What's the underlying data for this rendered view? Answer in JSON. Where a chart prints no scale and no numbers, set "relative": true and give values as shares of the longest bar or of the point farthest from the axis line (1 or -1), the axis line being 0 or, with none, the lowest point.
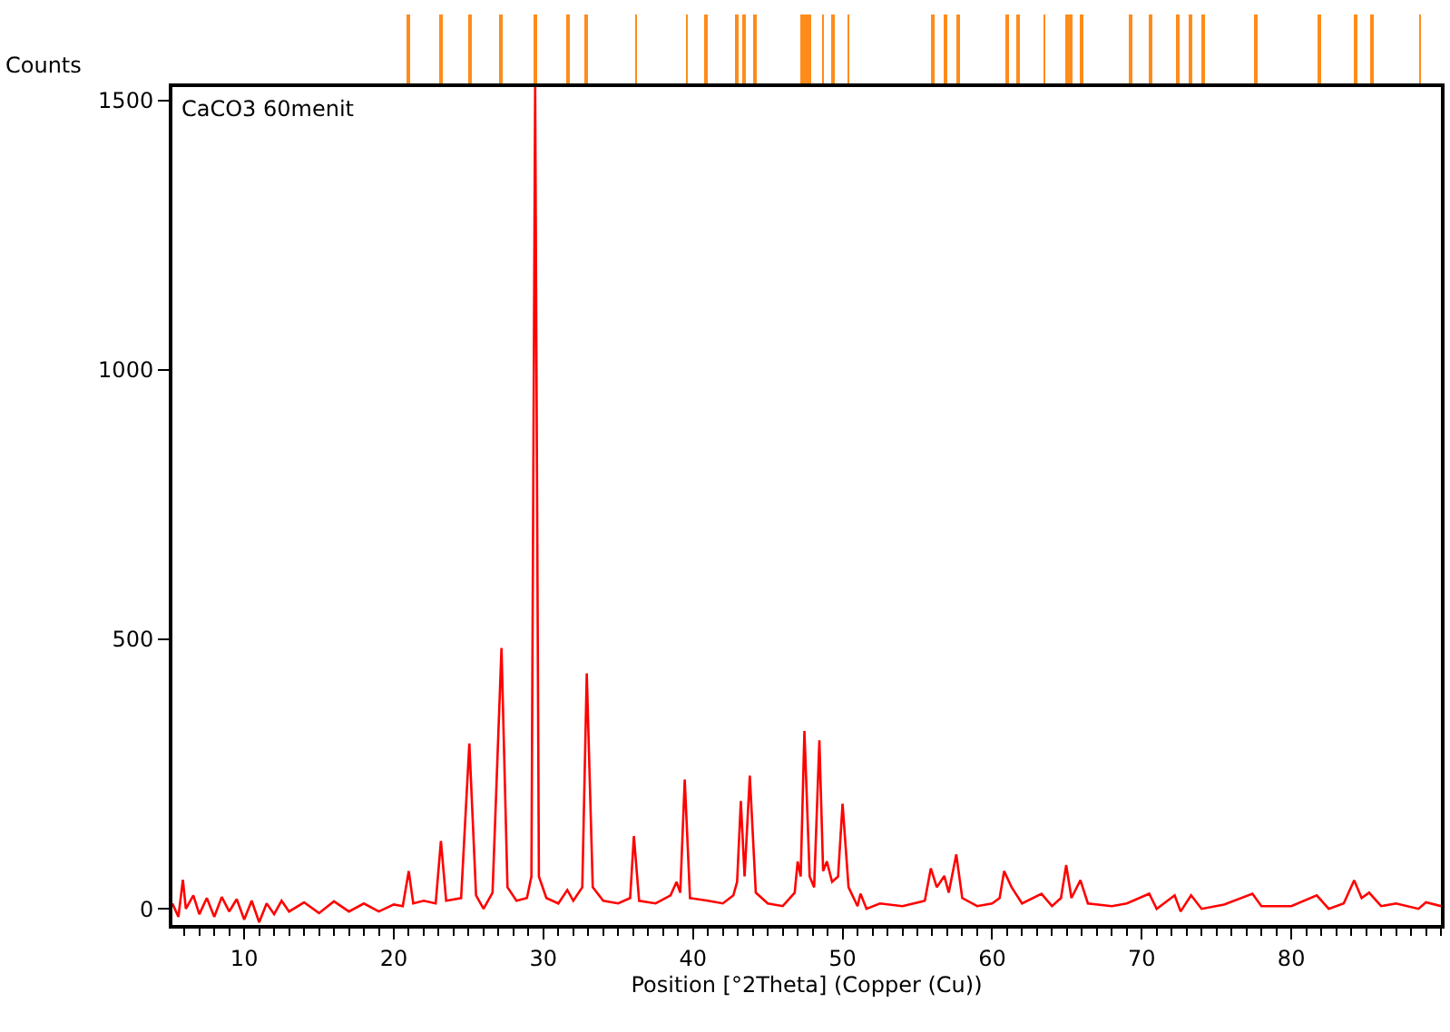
{
  "chart_data": [
    {
      "type": "bar",
      "relative": true,
      "tick_labels": false,
      "xlim": [
        5.2,
        90
      ],
      "x": [
        21.0,
        23.15,
        25.05,
        27.2,
        29.5,
        31.6,
        32.9,
        36.2,
        39.6,
        40.9,
        42.9,
        43.4,
        44.1,
        47.3,
        47.55,
        47.8,
        48.7,
        49.4,
        50.4,
        56.0,
        56.9,
        57.7,
        61.05,
        61.75,
        63.5,
        65.0,
        65.25,
        65.95,
        69.25,
        70.6,
        72.4,
        73.3,
        74.1,
        77.6,
        81.9,
        84.25,
        85.4,
        88.6
      ],
      "values": [
        1,
        1,
        1,
        1,
        1,
        1,
        1,
        1,
        1,
        1,
        1,
        1,
        1,
        1,
        1,
        1,
        1,
        1,
        1,
        1,
        1,
        1,
        1,
        1,
        1,
        1,
        1,
        1,
        1,
        1,
        1,
        1,
        1,
        1,
        1,
        1,
        1,
        1
      ],
      "color": "#ff8c1a"
    },
    {
      "type": "line",
      "xlabel": "Position [°2Theta] (Copper (Cu))",
      "ylabel": "Counts",
      "annotations": [
        "CaCO3 60menit"
      ],
      "xlim": [
        5.2,
        90
      ],
      "xticks": [
        10,
        20,
        30,
        40,
        50,
        60,
        70,
        80
      ],
      "ylim": [
        -30,
        1525
      ],
      "yticks": [
        0,
        500,
        1000,
        1500
      ],
      "marker": "none",
      "line_style": "solid",
      "series": [
        {
          "color": "#ff0000",
          "x": [
            5.2,
            5.6,
            5.9,
            6.1,
            6.6,
            7.0,
            7.5,
            8.0,
            8.5,
            9.0,
            9.5,
            10.0,
            10.5,
            11.0,
            11.5,
            12.0,
            12.5,
            13.0,
            14.0,
            15.0,
            16.0,
            17.0,
            18.0,
            19.0,
            20.0,
            20.6,
            21.0,
            21.3,
            22.0,
            22.8,
            23.15,
            23.5,
            24.5,
            25.05,
            25.5,
            26.0,
            26.6,
            27.2,
            27.6,
            28.2,
            28.9,
            29.2,
            29.45,
            29.7,
            30.2,
            31.0,
            31.6,
            32.0,
            32.6,
            32.9,
            33.3,
            34.0,
            35.0,
            35.8,
            36.05,
            36.4,
            37.5,
            38.5,
            38.9,
            39.15,
            39.45,
            39.8,
            41.0,
            42.0,
            42.7,
            42.95,
            43.2,
            43.45,
            43.8,
            44.2,
            45.0,
            46.0,
            46.8,
            47.0,
            47.2,
            47.45,
            47.8,
            48.1,
            48.45,
            48.7,
            48.95,
            49.3,
            49.7,
            50.0,
            50.4,
            51.0,
            51.2,
            51.6,
            52.5,
            54.0,
            55.5,
            55.9,
            56.3,
            56.8,
            57.1,
            57.6,
            58.0,
            59.0,
            60.0,
            60.5,
            60.8,
            61.3,
            62.0,
            63.3,
            64.0,
            64.6,
            64.95,
            65.3,
            65.9,
            66.4,
            68.0,
            69.0,
            70.5,
            71.0,
            72.2,
            72.6,
            73.3,
            74.0,
            75.5,
            77.4,
            78.0,
            80.0,
            81.7,
            82.5,
            83.5,
            84.2,
            84.7,
            85.2,
            86.0,
            87.0,
            88.5,
            89.0,
            90.0
          ],
          "values": [
            10,
            -15,
            54,
            0,
            25,
            -10,
            20,
            -15,
            22,
            -5,
            18,
            -20,
            15,
            -25,
            10,
            -10,
            15,
            -5,
            12,
            -8,
            14,
            -5,
            10,
            -5,
            8,
            5,
            70,
            10,
            15,
            10,
            126,
            15,
            20,
            307,
            25,
            0,
            30,
            484,
            40,
            15,
            20,
            60,
            1525,
            60,
            20,
            10,
            35,
            15,
            40,
            437,
            40,
            15,
            10,
            20,
            135,
            15,
            10,
            25,
            50,
            30,
            240,
            20,
            15,
            10,
            25,
            50,
            200,
            60,
            247,
            30,
            10,
            5,
            30,
            88,
            60,
            330,
            60,
            40,
            313,
            70,
            88,
            50,
            60,
            195,
            40,
            5,
            28,
            0,
            10,
            5,
            15,
            75,
            40,
            61,
            30,
            101,
            20,
            5,
            10,
            20,
            70,
            40,
            10,
            28,
            5,
            20,
            81,
            20,
            53,
            10,
            5,
            10,
            28,
            0,
            25,
            -5,
            25,
            0,
            8,
            28,
            5,
            5,
            25,
            0,
            10,
            53,
            20,
            30,
            5,
            10,
            0,
            12,
            5
          ]
        }
      ]
    }
  ]
}
